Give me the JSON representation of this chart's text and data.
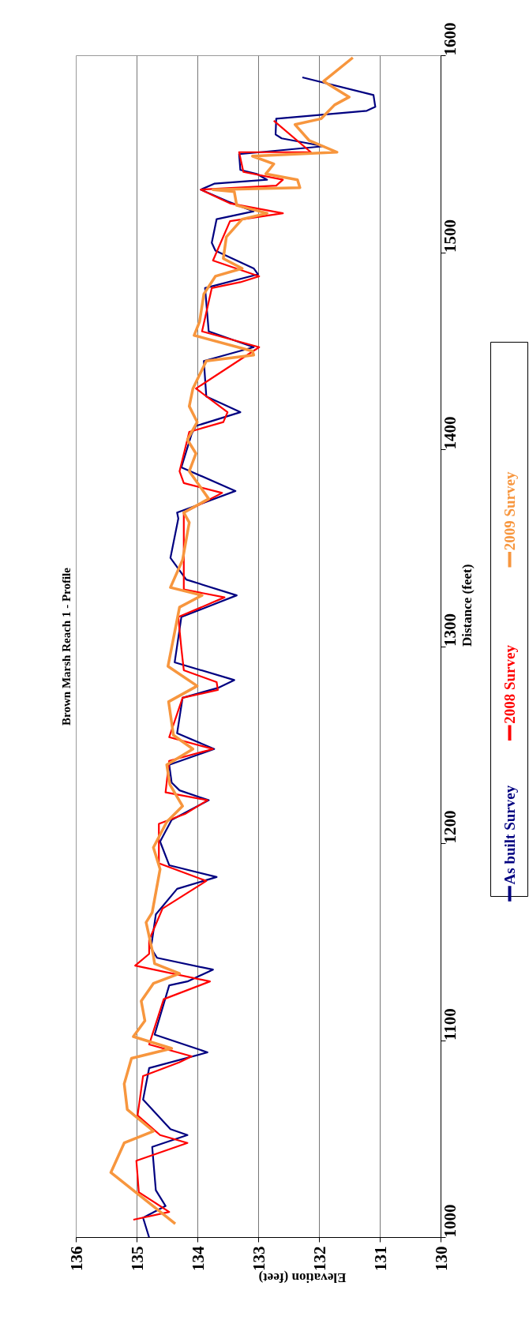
{
  "chart_data": {
    "type": "line",
    "title": "Brown Marsh Reach 1 - Profile",
    "xlabel": "Elevation (feet)",
    "ylabel": "Distance (feet)",
    "xlim": [
      136,
      130
    ],
    "xticks": [
      136,
      135,
      134,
      133,
      132,
      131,
      130
    ],
    "ylim": [
      1000,
      1600
    ],
    "yticks": [
      1000,
      1100,
      1200,
      1300,
      1400,
      1500,
      1600
    ],
    "grid": "x",
    "legend": "right",
    "series": [
      {
        "name": "As built Survey",
        "color": "#000080",
        "values": [
          1000,
          1010,
          1016,
          1024,
          1046,
          1052,
          1055,
          1070,
          1086,
          1094,
          1103,
          1128,
          1130,
          1136,
          1142,
          1147,
          1164,
          1177,
          1183,
          1189,
          1201,
          1212,
          1222,
          1227,
          1231,
          1240,
          1248,
          1256,
          1274,
          1279,
          1283,
          1292,
          1315,
          1326,
          1334,
          1345,
          1365,
          1368,
          1379,
          1391,
          1408,
          1412,
          1419,
          1427,
          1445,
          1452,
          1460,
          1482,
          1489,
          1492,
          1501,
          1505,
          1517,
          1521,
          1526,
          1532,
          1535,
          1537,
          1540,
          1542,
          1550,
          1554,
          1558,
          1560,
          1568,
          1572,
          1574,
          1580,
          1589
        ],
        "x": [
          134.8,
          134.9,
          134.53,
          134.69,
          134.75,
          134.17,
          134.45,
          134.9,
          134.8,
          133.84,
          134.71,
          134.47,
          134.17,
          133.75,
          134.67,
          134.77,
          134.69,
          134.34,
          133.69,
          134.47,
          134.62,
          134.43,
          133.82,
          134.3,
          134.43,
          134.47,
          133.73,
          134.34,
          134.25,
          133.67,
          133.4,
          134.38,
          134.27,
          133.36,
          134.19,
          134.45,
          134.32,
          134.34,
          133.38,
          134.27,
          134.1,
          134.03,
          133.3,
          133.86,
          133.9,
          133.08,
          133.82,
          133.88,
          133.01,
          133.08,
          133.71,
          133.77,
          133.69,
          133.08,
          133.51,
          133.95,
          133.73,
          132.86,
          133.03,
          133.3,
          133.32,
          131.93,
          132.62,
          132.72,
          132.71,
          131.22,
          131.08,
          131.11,
          132.28
        ]
      },
      {
        "name": "2008 Survey",
        "color": "#ff0000",
        "values": [
          1009,
          1013,
          1023,
          1039,
          1048,
          1052,
          1062,
          1082,
          1089,
          1092,
          1098,
          1121,
          1130,
          1138,
          1144,
          1151,
          1167,
          1181,
          1190,
          1210,
          1215,
          1222,
          1226,
          1242,
          1248,
          1254,
          1274,
          1278,
          1282,
          1288,
          1299,
          1315,
          1325,
          1329,
          1368,
          1378,
          1383,
          1389,
          1409,
          1414,
          1419,
          1431,
          1452,
          1460,
          1482,
          1485,
          1488,
          1496,
          1516,
          1520,
          1525,
          1532,
          1534,
          1537,
          1541,
          1551,
          1551,
          1567
        ],
        "x": [
          135.06,
          134.47,
          134.97,
          135.01,
          134.17,
          134.62,
          134.99,
          134.9,
          134.3,
          134.1,
          134.8,
          134.56,
          133.8,
          135.03,
          134.8,
          134.8,
          134.58,
          133.86,
          134.64,
          134.64,
          134.21,
          133.84,
          134.53,
          134.47,
          133.75,
          134.47,
          134.25,
          133.67,
          133.69,
          134.23,
          134.27,
          134.32,
          133.56,
          134.23,
          134.23,
          133.6,
          134.23,
          134.3,
          134.14,
          133.58,
          133.51,
          134.03,
          132.99,
          133.93,
          133.77,
          133.3,
          132.99,
          133.75,
          133.47,
          132.6,
          133.47,
          133.95,
          132.71,
          132.6,
          133.25,
          133.32,
          132.14,
          132.75
        ]
      },
      {
        "name": "2009 Survey",
        "color": "#f7963e",
        "values": [
          1007,
          1033,
          1048,
          1054,
          1065,
          1078,
          1091,
          1096,
          1102,
          1110,
          1120,
          1129,
          1134,
          1139,
          1143,
          1160,
          1165,
          1187,
          1198,
          1211,
          1219,
          1230,
          1240,
          1248,
          1255,
          1272,
          1280,
          1290,
          1320,
          1326,
          1330,
          1344,
          1363,
          1368,
          1375,
          1389,
          1398,
          1405,
          1409,
          1414,
          1422,
          1431,
          1445,
          1448,
          1450,
          1458,
          1465,
          1479,
          1488,
          1492,
          1497,
          1508,
          1517,
          1520,
          1524,
          1531,
          1532,
          1533,
          1537,
          1540,
          1545,
          1549,
          1551,
          1557,
          1565,
          1568,
          1575,
          1579,
          1587,
          1599
        ],
        "x": [
          134.37,
          135.43,
          135.21,
          134.73,
          135.16,
          135.21,
          135.09,
          134.43,
          135.06,
          134.87,
          134.93,
          134.73,
          134.3,
          134.71,
          134.73,
          134.85,
          134.75,
          134.62,
          134.73,
          134.51,
          134.25,
          134.46,
          134.51,
          134.08,
          134.4,
          134.48,
          134.01,
          134.49,
          134.3,
          133.93,
          134.45,
          134.25,
          134.14,
          134.23,
          133.82,
          134.14,
          134.03,
          134.17,
          134.1,
          134.01,
          134.14,
          134.08,
          133.86,
          133.08,
          133.1,
          134.06,
          133.97,
          133.9,
          133.71,
          133.27,
          133.58,
          133.53,
          133.27,
          132.86,
          133.36,
          133.4,
          133.75,
          132.32,
          132.36,
          132.88,
          132.75,
          133.1,
          131.71,
          132.17,
          132.4,
          131.97,
          131.75,
          131.51,
          131.93,
          131.45
        ]
      }
    ]
  }
}
